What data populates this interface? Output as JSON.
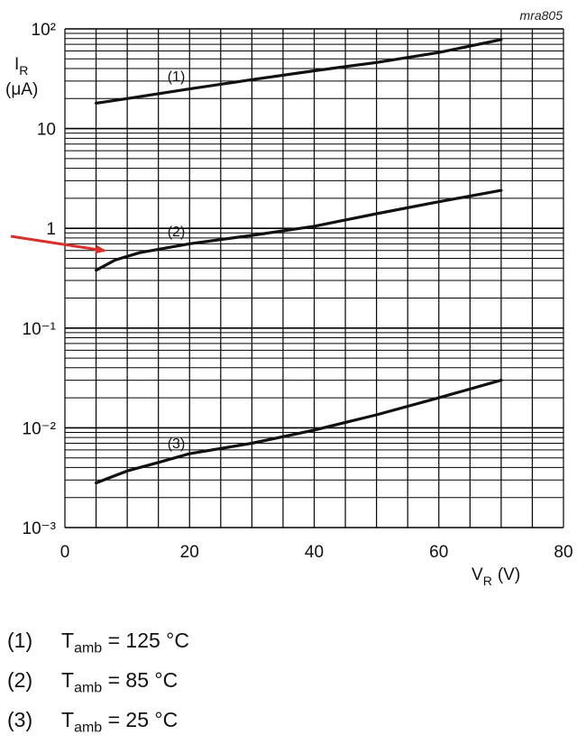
{
  "tag": "mra805",
  "chart_data": {
    "type": "line",
    "x_axis": {
      "symbol": "V",
      "subscript": "R",
      "unit": "(V)",
      "min": 0,
      "max": 80,
      "ticks": [
        "0",
        "20",
        "40",
        "60",
        "80"
      ]
    },
    "y_axis": {
      "symbol": "I",
      "subscript": "R",
      "unit": "(μA)",
      "scale": "log",
      "min": 0.001,
      "max": 100,
      "ticks": [
        "10⁻³",
        "10⁻²",
        "10⁻¹",
        "1",
        "10",
        "10²"
      ]
    },
    "grid": true,
    "series": [
      {
        "name": "(1)",
        "x": [
          5,
          10,
          20,
          30,
          40,
          50,
          60,
          70
        ],
        "y": [
          18,
          20,
          25,
          31,
          38,
          46,
          58,
          78
        ]
      },
      {
        "name": "(2)",
        "x": [
          5,
          8,
          12,
          20,
          30,
          40,
          50,
          60,
          70
        ],
        "y": [
          0.38,
          0.48,
          0.57,
          0.7,
          0.85,
          1.05,
          1.4,
          1.85,
          2.4
        ]
      },
      {
        "name": "(3)",
        "x": [
          5,
          10,
          15,
          20,
          30,
          40,
          50,
          60,
          70
        ],
        "y": [
          0.0028,
          0.0037,
          0.0045,
          0.0055,
          0.007,
          0.0095,
          0.0135,
          0.02,
          0.03
        ]
      }
    ],
    "annotations": [
      "arrow pointing to curve (2) at V_R ≈ 5 V"
    ]
  },
  "legend": [
    {
      "num": "(1)",
      "symbol": "T",
      "sub": "amb",
      "value": "= 125 °C"
    },
    {
      "num": "(2)",
      "symbol": "T",
      "sub": "amb",
      "value": "= 85 °C"
    },
    {
      "num": "(3)",
      "symbol": "T",
      "sub": "amb",
      "value": "= 25 °C"
    }
  ],
  "colors": {
    "curve": "#111111",
    "grid": "#000000",
    "arrow": "#d9302c"
  }
}
